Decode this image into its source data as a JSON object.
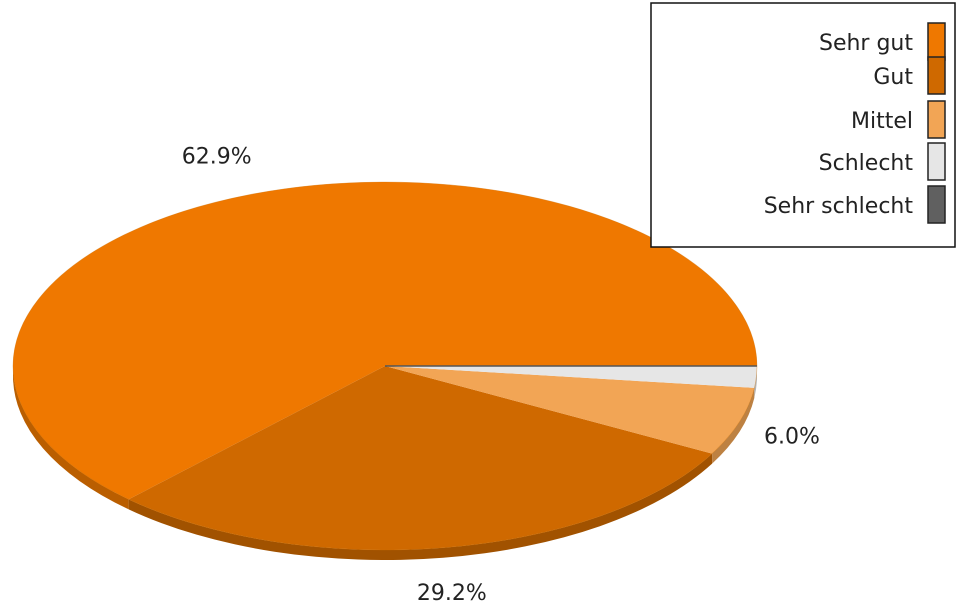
{
  "chart_data": {
    "type": "pie",
    "style": "3d-tilted",
    "title": "",
    "categories": [
      "Sehr gut",
      "Gut",
      "Mittel",
      "Schlecht",
      "Sehr schlecht"
    ],
    "values": [
      62.9,
      29.2,
      6.0,
      1.9,
      0.0
    ],
    "slice_labels": [
      "62.9%",
      "29.2%",
      "6.0%",
      "",
      ""
    ],
    "colors": [
      "#ef7800",
      "#cf6900",
      "#f2a555",
      "#e6e6e6",
      "#606060"
    ],
    "legend": {
      "position": "top-right",
      "items": [
        {
          "label": "Sehr gut",
          "color": "#ef7800"
        },
        {
          "label": "Gut",
          "color": "#cf6900"
        },
        {
          "label": "Mittel",
          "color": "#f2a555"
        },
        {
          "label": "Schlecht",
          "color": "#e6e6e6"
        },
        {
          "label": "Sehr schlecht",
          "color": "#606060"
        }
      ]
    }
  }
}
